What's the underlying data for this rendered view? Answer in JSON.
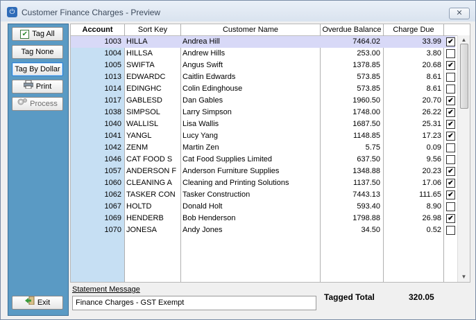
{
  "window": {
    "title": "Customer Finance Charges - Preview",
    "close_label": "✕"
  },
  "sidebar": {
    "tag_all": "Tag All",
    "tag_none": "Tag None",
    "tag_by_dollar": "Tag By Dollar",
    "print": "Print",
    "process": "Process",
    "exit": "Exit"
  },
  "grid": {
    "columns": [
      "Account",
      "Sort Key",
      "Customer Name",
      "Overdue Balance",
      "Charge Due"
    ],
    "rows": [
      {
        "account": "1003",
        "sort_key": "HILLA",
        "name": "Andrea Hill",
        "overdue": "7464.02",
        "charge": "33.99",
        "tagged": true
      },
      {
        "account": "1004",
        "sort_key": "HILLSA",
        "name": "Andrew Hills",
        "overdue": "253.00",
        "charge": "3.80",
        "tagged": false
      },
      {
        "account": "1005",
        "sort_key": "SWIFTA",
        "name": "Angus Swift",
        "overdue": "1378.85",
        "charge": "20.68",
        "tagged": true
      },
      {
        "account": "1013",
        "sort_key": "EDWARDC",
        "name": "Caitlin Edwards",
        "overdue": "573.85",
        "charge": "8.61",
        "tagged": false
      },
      {
        "account": "1014",
        "sort_key": "EDINGHC",
        "name": "Colin Edinghouse",
        "overdue": "573.85",
        "charge": "8.61",
        "tagged": false
      },
      {
        "account": "1017",
        "sort_key": "GABLESD",
        "name": "Dan Gables",
        "overdue": "1960.50",
        "charge": "20.70",
        "tagged": true
      },
      {
        "account": "1038",
        "sort_key": "SIMPSOL",
        "name": "Larry Simpson",
        "overdue": "1748.00",
        "charge": "26.22",
        "tagged": true
      },
      {
        "account": "1040",
        "sort_key": "WALLISL",
        "name": "Lisa Wallis",
        "overdue": "1687.50",
        "charge": "25.31",
        "tagged": true
      },
      {
        "account": "1041",
        "sort_key": "YANGL",
        "name": "Lucy Yang",
        "overdue": "1148.85",
        "charge": "17.23",
        "tagged": true
      },
      {
        "account": "1042",
        "sort_key": "ZENM",
        "name": "Martin Zen",
        "overdue": "5.75",
        "charge": "0.09",
        "tagged": false
      },
      {
        "account": "1046",
        "sort_key": "CAT FOOD S",
        "name": "Cat Food Supplies Limited",
        "overdue": "637.50",
        "charge": "9.56",
        "tagged": false
      },
      {
        "account": "1057",
        "sort_key": "ANDERSON F",
        "name": "Anderson Furniture Supplies",
        "overdue": "1348.88",
        "charge": "20.23",
        "tagged": true
      },
      {
        "account": "1060",
        "sort_key": "CLEANING A",
        "name": "Cleaning and Printing Solutions",
        "overdue": "1137.50",
        "charge": "17.06",
        "tagged": true
      },
      {
        "account": "1062",
        "sort_key": "TASKER CON",
        "name": "Tasker Construction",
        "overdue": "7443.13",
        "charge": "111.65",
        "tagged": true
      },
      {
        "account": "1067",
        "sort_key": "HOLTD",
        "name": "Donald Holt",
        "overdue": "593.40",
        "charge": "8.90",
        "tagged": false
      },
      {
        "account": "1069",
        "sort_key": "HENDERB",
        "name": "Bob Henderson",
        "overdue": "1798.88",
        "charge": "26.98",
        "tagged": true
      },
      {
        "account": "1070",
        "sort_key": "JONESA",
        "name": "Andy Jones",
        "overdue": "34.50",
        "charge": "0.52",
        "tagged": false
      }
    ]
  },
  "statement": {
    "label": "Statement Message",
    "value": "Finance Charges - GST Exempt"
  },
  "totals": {
    "label": "Tagged Total",
    "value": "320.05"
  }
}
